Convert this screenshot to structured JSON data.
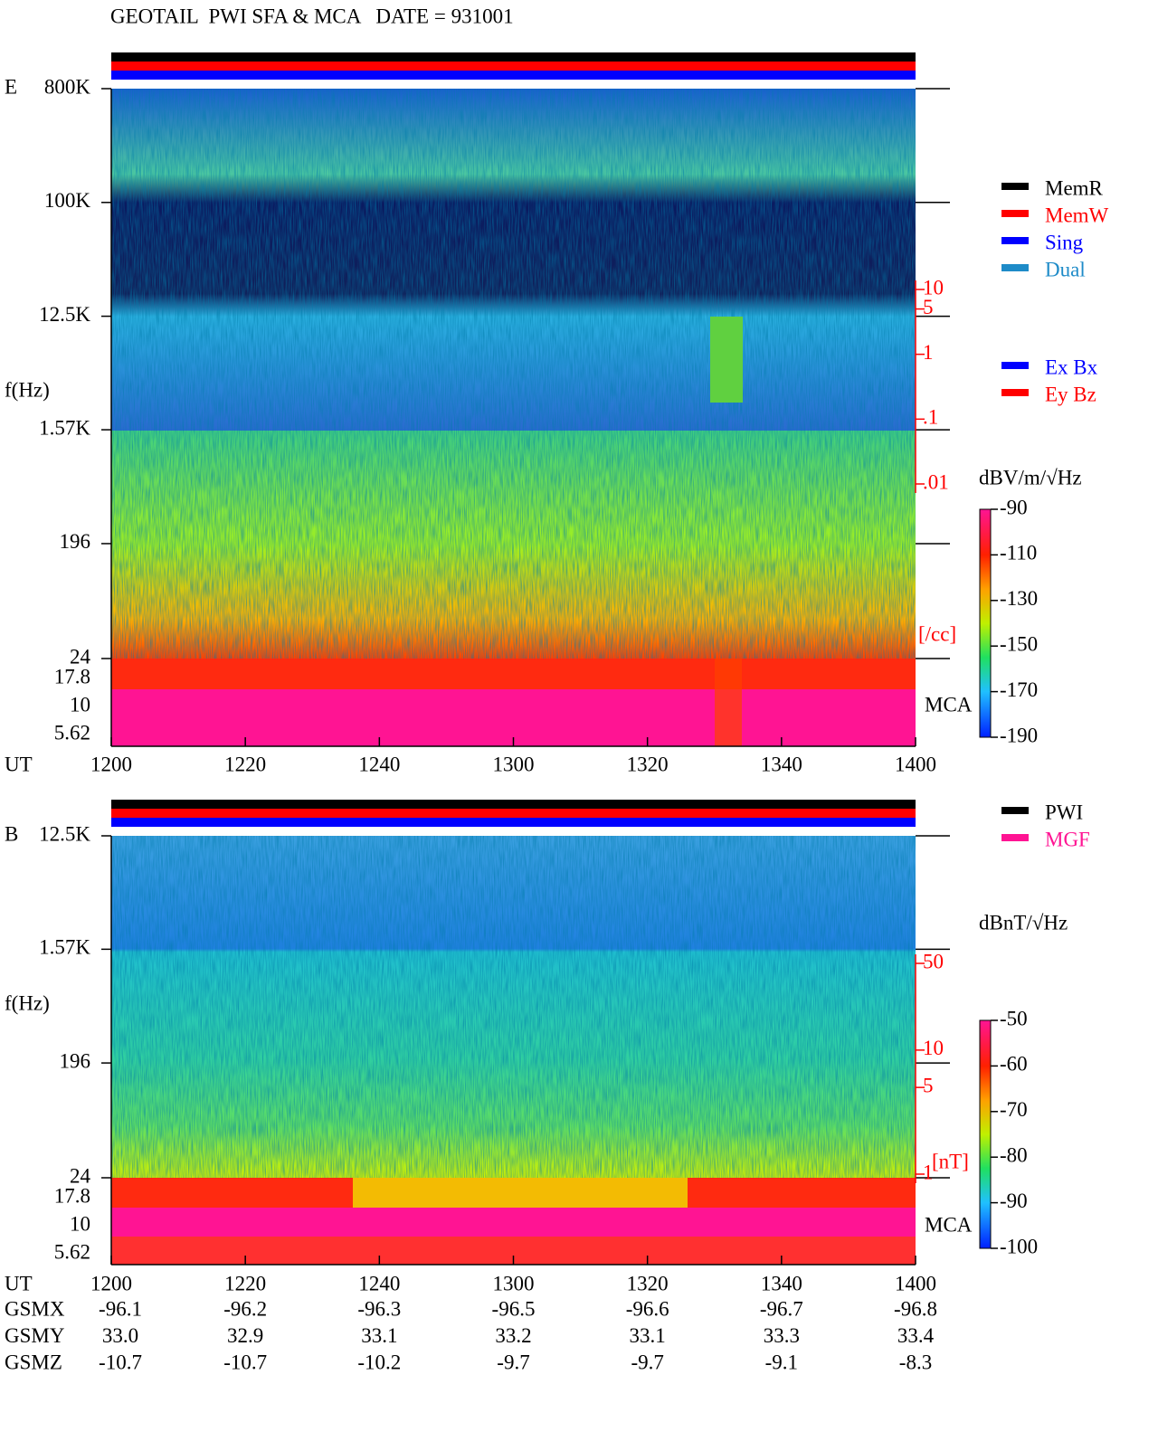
{
  "title": "GEOTAIL  PWI SFA & MCA   DATE = 931001",
  "chart_data": [
    {
      "type": "spectrogram",
      "panel": "E",
      "y_label": "f(Hz)",
      "log_scale": true,
      "ylim": [
        24,
        800000
      ],
      "yticks": [
        {
          "value": 800000,
          "label": "800K"
        },
        {
          "value": 100000,
          "label": "100K"
        },
        {
          "value": 12500,
          "label": "12.5K"
        },
        {
          "value": 1570,
          "label": "1.57K"
        },
        196,
        24
      ],
      "mca_label": "MCA",
      "mca_ticks": [
        "17.8",
        "10",
        "5.62"
      ],
      "x_label": "UT",
      "xticks": [
        "1200",
        "1220",
        "1240",
        "1300",
        "1320",
        "1340",
        "1400"
      ],
      "y2_label": "[/cc]",
      "y2_color": "#ff0000",
      "y2lim": [
        0.01,
        10
      ],
      "y2ticks": [
        10,
        5,
        1,
        {
          "value": 0.1,
          "label": ".1"
        },
        {
          "value": 0.01,
          "label": ".01"
        }
      ],
      "colorbar": {
        "title": "dBV/m/√Hz",
        "lim": [
          -190,
          -90
        ],
        "ticks": [
          -90,
          -110,
          -130,
          -150,
          -170,
          -190
        ]
      },
      "legend": [
        {
          "name": "MemR",
          "color": "#000000"
        },
        {
          "name": "MemW",
          "color": "#ff0000"
        },
        {
          "name": "Sing",
          "color": "#0000ff"
        },
        {
          "name": "Dual",
          "color": "#1e8bc8"
        }
      ],
      "legend2": [
        {
          "name": "Ex Bx",
          "color": "#0000ff"
        },
        {
          "name": "Ey Bz",
          "color": "#ff0000"
        }
      ]
    },
    {
      "type": "spectrogram",
      "panel": "B",
      "y_label": "f(Hz)",
      "log_scale": true,
      "ylim": [
        24,
        12500
      ],
      "yticks": [
        {
          "value": 12500,
          "label": "12.5K"
        },
        {
          "value": 1570,
          "label": "1.57K"
        },
        196,
        24
      ],
      "mca_label": "MCA",
      "mca_ticks": [
        "17.8",
        "10",
        "5.62"
      ],
      "x_label": "UT",
      "xticks": [
        "1200",
        "1220",
        "1240",
        "1300",
        "1320",
        "1340",
        "1400"
      ],
      "y2_label": "[nT]",
      "y2_color": "#ff0000",
      "y2lim": [
        1,
        50
      ],
      "y2ticks": [
        50,
        10,
        5,
        1
      ],
      "colorbar": {
        "title": "dBnT/√Hz",
        "lim": [
          -100,
          -50
        ],
        "ticks": [
          -50,
          -60,
          -70,
          -80,
          -90,
          -100
        ]
      },
      "legend": [
        {
          "name": "PWI",
          "color": "#000000"
        },
        {
          "name": "MGF",
          "color": "#ff1493"
        }
      ],
      "legend2": []
    }
  ],
  "ephemeris": {
    "rows": [
      {
        "label": "GSMX",
        "values": [
          "-96.1",
          "-96.2",
          "-96.3",
          "-96.5",
          "-96.6",
          "-96.7",
          "-96.8"
        ]
      },
      {
        "label": "GSMY",
        "values": [
          "33.0",
          "32.9",
          "33.1",
          "33.2",
          "33.1",
          "33.3",
          "33.4"
        ]
      },
      {
        "label": "GSMZ",
        "values": [
          "-10.7",
          "-10.7",
          "-10.2",
          "-9.7",
          "-9.7",
          "-9.1",
          "-8.3"
        ]
      }
    ]
  }
}
